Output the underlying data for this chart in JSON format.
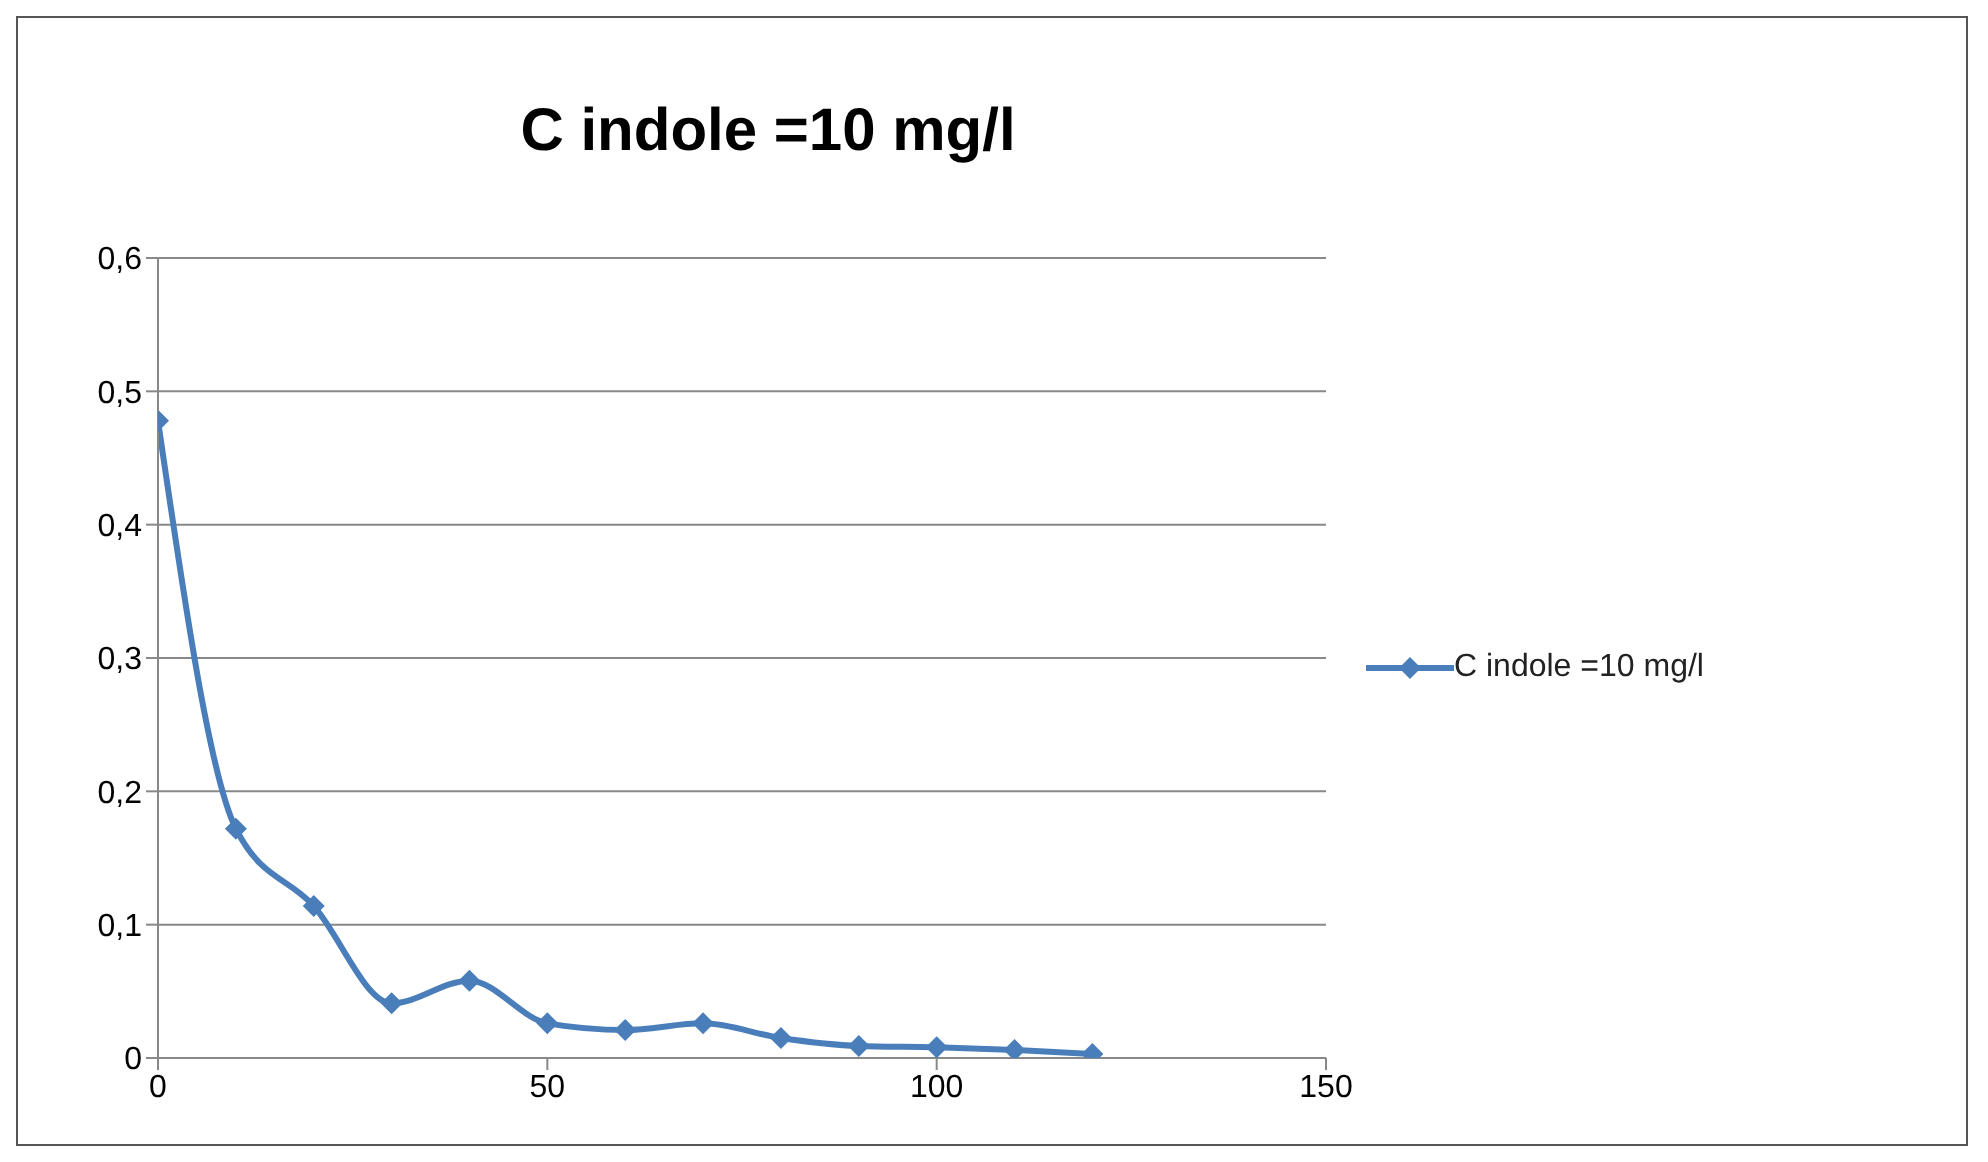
{
  "chart_data": {
    "type": "line",
    "title": "C indole =10 mg/l",
    "x": [
      0,
      10,
      20,
      30,
      40,
      50,
      60,
      70,
      80,
      90,
      100,
      110,
      120
    ],
    "series": [
      {
        "name": "C indole =10 mg/l",
        "color": "#4a7ebb",
        "values": [
          0.478,
          0.172,
          0.114,
          0.041,
          0.058,
          0.026,
          0.021,
          0.026,
          0.015,
          0.009,
          0.008,
          0.006,
          0.003
        ]
      }
    ],
    "xlim": [
      0,
      150
    ],
    "xticks": [
      0,
      50,
      100,
      150
    ],
    "ylim": [
      0,
      0.6
    ],
    "yticks": [
      {
        "value": 0,
        "label": "0"
      },
      {
        "value": 0.1,
        "label": "0,1"
      },
      {
        "value": 0.2,
        "label": "0,2"
      },
      {
        "value": 0.3,
        "label": "0,3"
      },
      {
        "value": 0.4,
        "label": "0,4"
      },
      {
        "value": 0.5,
        "label": "0,5"
      },
      {
        "value": 0.6,
        "label": "0,6"
      }
    ],
    "grid": "y",
    "legend": "right",
    "marker": "diamond",
    "line_style": "solid"
  }
}
